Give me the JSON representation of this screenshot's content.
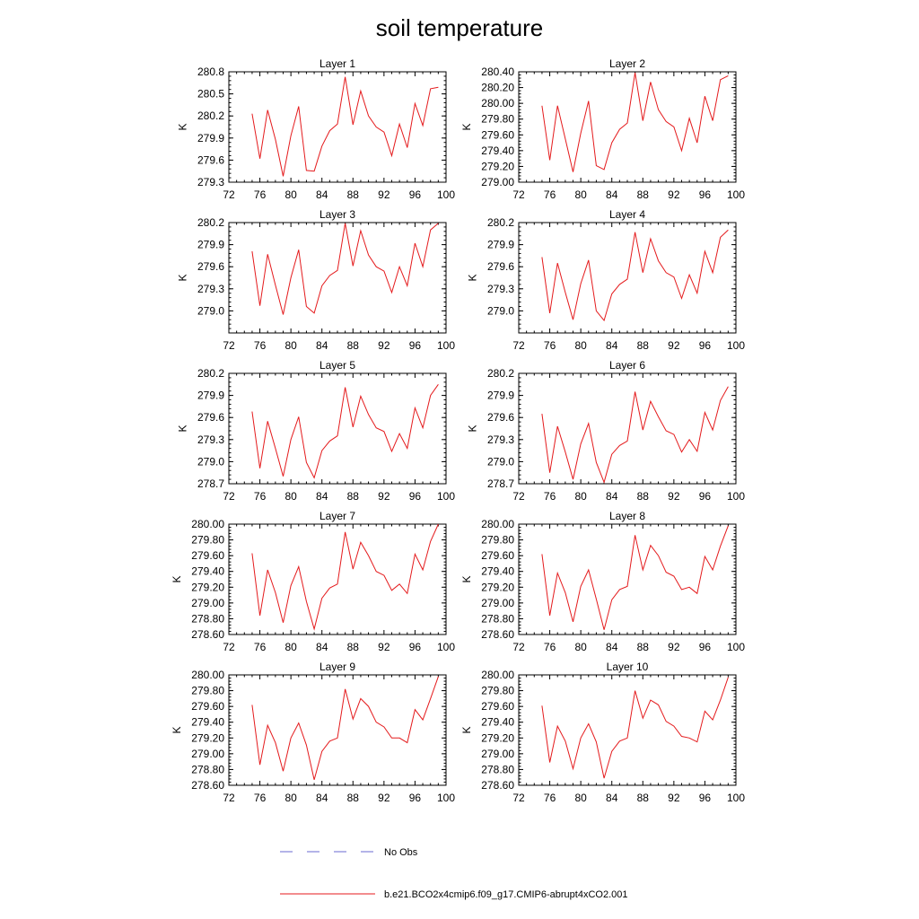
{
  "title": "soil temperature",
  "legend": {
    "no_obs": {
      "label": "No Obs",
      "color": "#6a6ad0",
      "style": "dashed"
    },
    "model": {
      "label": "b.e21.BCO2x4cmip6.f09_g17.CMIP6-abrupt4xCO2.001",
      "color": "#e41a1c",
      "style": "solid"
    }
  },
  "chart_data": [
    {
      "type": "line",
      "title": "Layer 1",
      "ylabel": "K",
      "xlim": [
        72,
        100
      ],
      "xticks": [
        "72",
        "76",
        "80",
        "84",
        "88",
        "92",
        "96",
        "100"
      ],
      "ylim": [
        279.3,
        280.8
      ],
      "yticks": [
        "279.3",
        "279.6",
        "279.9",
        "280.2",
        "280.5",
        "280.8"
      ],
      "series": [
        {
          "color": "#e41a1c",
          "x": [
            75,
            76,
            77,
            78,
            79,
            80,
            81,
            82,
            83,
            84,
            85,
            86,
            87,
            88,
            89,
            90,
            91,
            92,
            93,
            94,
            95,
            96,
            97,
            98,
            99
          ],
          "y": [
            280.23,
            279.62,
            280.28,
            279.88,
            279.38,
            279.93,
            280.33,
            279.46,
            279.45,
            279.79,
            280.0,
            280.09,
            280.73,
            280.08,
            280.54,
            280.2,
            280.05,
            279.98,
            279.66,
            280.09,
            279.77,
            280.37,
            280.07,
            280.57,
            280.59
          ]
        }
      ]
    },
    {
      "type": "line",
      "title": "Layer 2",
      "ylabel": "K",
      "xlim": [
        72,
        100
      ],
      "xticks": [
        "72",
        "76",
        "80",
        "84",
        "88",
        "92",
        "96",
        "100"
      ],
      "ylim": [
        279.0,
        280.4
      ],
      "yticks": [
        "279.00",
        "279.20",
        "279.40",
        "279.60",
        "279.80",
        "280.00",
        "280.20",
        "280.40"
      ],
      "series": [
        {
          "color": "#e41a1c",
          "x": [
            75,
            76,
            77,
            78,
            79,
            80,
            81,
            82,
            83,
            84,
            85,
            86,
            87,
            88,
            89,
            90,
            91,
            92,
            93,
            94,
            95,
            96,
            97,
            98,
            99
          ],
          "y": [
            279.97,
            279.28,
            279.97,
            279.55,
            279.13,
            279.62,
            280.03,
            279.21,
            279.16,
            279.5,
            279.67,
            279.75,
            280.39,
            279.78,
            280.27,
            279.92,
            279.77,
            279.7,
            279.4,
            279.81,
            279.5,
            280.09,
            279.78,
            280.3,
            280.35
          ]
        }
      ]
    },
    {
      "type": "line",
      "title": "Layer 3",
      "ylabel": "K",
      "xlim": [
        72,
        100
      ],
      "xticks": [
        "72",
        "76",
        "80",
        "84",
        "88",
        "92",
        "96",
        "100"
      ],
      "ylim": [
        278.7,
        280.2
      ],
      "yticks": [
        "279.0",
        "279.3",
        "279.6",
        "279.9",
        "280.2"
      ],
      "series": [
        {
          "color": "#e41a1c",
          "x": [
            75,
            76,
            77,
            78,
            79,
            80,
            81,
            82,
            83,
            84,
            85,
            86,
            87,
            88,
            89,
            90,
            91,
            92,
            93,
            94,
            95,
            96,
            97,
            98,
            99
          ],
          "y": [
            279.81,
            279.07,
            279.77,
            279.35,
            278.95,
            279.45,
            279.83,
            279.06,
            278.97,
            279.34,
            279.48,
            279.55,
            280.19,
            279.61,
            280.09,
            279.76,
            279.6,
            279.54,
            279.25,
            279.6,
            279.34,
            279.92,
            279.6,
            280.1,
            280.19
          ]
        }
      ]
    },
    {
      "type": "line",
      "title": "Layer 4",
      "ylabel": "K",
      "xlim": [
        72,
        100
      ],
      "xticks": [
        "72",
        "76",
        "80",
        "84",
        "88",
        "92",
        "96",
        "100"
      ],
      "ylim": [
        278.7,
        280.2
      ],
      "yticks": [
        "279.0",
        "279.3",
        "279.6",
        "279.9",
        "280.2"
      ],
      "series": [
        {
          "color": "#e41a1c",
          "x": [
            75,
            76,
            77,
            78,
            79,
            80,
            81,
            82,
            83,
            84,
            85,
            86,
            87,
            88,
            89,
            90,
            91,
            92,
            93,
            94,
            95,
            96,
            97,
            98,
            99
          ],
          "y": [
            279.73,
            278.97,
            279.65,
            279.25,
            278.88,
            279.37,
            279.69,
            279.0,
            278.87,
            279.23,
            279.36,
            279.43,
            280.07,
            279.52,
            279.98,
            279.68,
            279.52,
            279.46,
            279.17,
            279.49,
            279.24,
            279.81,
            279.52,
            280.0,
            280.1
          ]
        }
      ]
    },
    {
      "type": "line",
      "title": "Layer 5",
      "ylabel": "K",
      "xlim": [
        72,
        100
      ],
      "xticks": [
        "72",
        "76",
        "80",
        "84",
        "88",
        "92",
        "96",
        "100"
      ],
      "ylim": [
        278.7,
        280.2
      ],
      "yticks": [
        "278.7",
        "279.0",
        "279.3",
        "279.6",
        "279.9",
        "280.2"
      ],
      "series": [
        {
          "color": "#e41a1c",
          "x": [
            75,
            76,
            77,
            78,
            79,
            80,
            81,
            82,
            83,
            84,
            85,
            86,
            87,
            88,
            89,
            90,
            91,
            92,
            93,
            94,
            95,
            96,
            97,
            98,
            99
          ],
          "y": [
            279.68,
            278.91,
            279.55,
            279.18,
            278.8,
            279.3,
            279.61,
            278.99,
            278.78,
            279.15,
            279.28,
            279.35,
            280.01,
            279.47,
            279.89,
            279.64,
            279.46,
            279.41,
            279.14,
            279.38,
            279.18,
            279.73,
            279.46,
            279.9,
            280.05
          ]
        }
      ]
    },
    {
      "type": "line",
      "title": "Layer 6",
      "ylabel": "K",
      "xlim": [
        72,
        100
      ],
      "xticks": [
        "72",
        "76",
        "80",
        "84",
        "88",
        "92",
        "96",
        "100"
      ],
      "ylim": [
        278.7,
        280.2
      ],
      "yticks": [
        "278.7",
        "279.0",
        "279.3",
        "279.6",
        "279.9",
        "280.2"
      ],
      "series": [
        {
          "color": "#e41a1c",
          "x": [
            75,
            76,
            77,
            78,
            79,
            80,
            81,
            82,
            83,
            84,
            85,
            86,
            87,
            88,
            89,
            90,
            91,
            92,
            93,
            94,
            95,
            96,
            97,
            98,
            99
          ],
          "y": [
            279.65,
            278.85,
            279.48,
            279.13,
            278.76,
            279.24,
            279.52,
            278.99,
            278.72,
            279.1,
            279.22,
            279.28,
            279.95,
            279.43,
            279.82,
            279.61,
            279.42,
            279.37,
            279.13,
            279.3,
            279.14,
            279.67,
            279.43,
            279.83,
            280.02
          ]
        }
      ]
    },
    {
      "type": "line",
      "title": "Layer 7",
      "ylabel": "K",
      "xlim": [
        72,
        100
      ],
      "xticks": [
        "72",
        "76",
        "80",
        "84",
        "88",
        "92",
        "96",
        "100"
      ],
      "ylim": [
        278.6,
        280.0
      ],
      "yticks": [
        "278.60",
        "278.80",
        "279.00",
        "279.20",
        "279.40",
        "279.60",
        "279.80",
        "280.00"
      ],
      "series": [
        {
          "color": "#e41a1c",
          "x": [
            75,
            76,
            77,
            78,
            79,
            80,
            81,
            82,
            83,
            84,
            85,
            86,
            87,
            88,
            89,
            90,
            91,
            92,
            93,
            94,
            95,
            96,
            97,
            98,
            99
          ],
          "y": [
            279.63,
            278.84,
            279.42,
            279.13,
            278.75,
            279.22,
            279.46,
            279.02,
            278.67,
            279.06,
            279.19,
            279.24,
            279.9,
            279.43,
            279.77,
            279.6,
            279.4,
            279.35,
            279.16,
            279.24,
            279.12,
            279.62,
            279.42,
            279.78,
            280.0
          ]
        }
      ]
    },
    {
      "type": "line",
      "title": "Layer 8",
      "ylabel": "K",
      "xlim": [
        72,
        100
      ],
      "xticks": [
        "72",
        "76",
        "80",
        "84",
        "88",
        "92",
        "96",
        "100"
      ],
      "ylim": [
        278.6,
        280.0
      ],
      "yticks": [
        "278.60",
        "278.80",
        "279.00",
        "279.20",
        "279.40",
        "279.60",
        "279.80",
        "280.00"
      ],
      "series": [
        {
          "color": "#e41a1c",
          "x": [
            75,
            76,
            77,
            78,
            79,
            80,
            81,
            82,
            83,
            84,
            85,
            86,
            87,
            88,
            89,
            90,
            91,
            92,
            93,
            94,
            95,
            96,
            97,
            98,
            99
          ],
          "y": [
            279.62,
            278.84,
            279.38,
            279.13,
            278.76,
            279.21,
            279.42,
            279.05,
            278.66,
            279.04,
            279.17,
            279.21,
            279.86,
            279.42,
            279.73,
            279.6,
            279.39,
            279.34,
            279.17,
            279.2,
            279.12,
            279.59,
            279.42,
            279.72,
            279.98
          ]
        }
      ]
    },
    {
      "type": "line",
      "title": "Layer 9",
      "ylabel": "K",
      "xlim": [
        72,
        100
      ],
      "xticks": [
        "72",
        "76",
        "80",
        "84",
        "88",
        "92",
        "96",
        "100"
      ],
      "ylim": [
        278.6,
        280.0
      ],
      "yticks": [
        "278.60",
        "278.80",
        "279.00",
        "279.20",
        "279.40",
        "279.60",
        "279.80",
        "280.00"
      ],
      "series": [
        {
          "color": "#e41a1c",
          "x": [
            75,
            76,
            77,
            78,
            79,
            80,
            81,
            82,
            83,
            84,
            85,
            86,
            87,
            88,
            89,
            90,
            91,
            92,
            93,
            94,
            95,
            96,
            97,
            98,
            99
          ],
          "y": [
            279.62,
            278.86,
            279.36,
            279.14,
            278.78,
            279.2,
            279.39,
            279.11,
            278.67,
            279.03,
            279.16,
            279.2,
            279.82,
            279.44,
            279.7,
            279.6,
            279.4,
            279.34,
            279.2,
            279.2,
            279.14,
            279.56,
            279.43,
            279.7,
            279.98
          ]
        }
      ]
    },
    {
      "type": "line",
      "title": "Layer 10",
      "ylabel": "K",
      "xlim": [
        72,
        100
      ],
      "xticks": [
        "72",
        "76",
        "80",
        "84",
        "88",
        "92",
        "96",
        "100"
      ],
      "ylim": [
        278.6,
        280.0
      ],
      "yticks": [
        "278.60",
        "278.80",
        "279.00",
        "279.20",
        "279.40",
        "279.60",
        "279.80",
        "280.00"
      ],
      "series": [
        {
          "color": "#e41a1c",
          "x": [
            75,
            76,
            77,
            78,
            79,
            80,
            81,
            82,
            83,
            84,
            85,
            86,
            87,
            88,
            89,
            90,
            91,
            92,
            93,
            94,
            95,
            96,
            97,
            98,
            99
          ],
          "y": [
            279.61,
            278.89,
            279.35,
            279.16,
            278.81,
            279.2,
            279.38,
            279.15,
            278.69,
            279.03,
            279.16,
            279.2,
            279.8,
            279.45,
            279.68,
            279.62,
            279.41,
            279.35,
            279.22,
            279.2,
            279.15,
            279.54,
            279.43,
            279.68,
            279.97
          ]
        }
      ]
    }
  ]
}
